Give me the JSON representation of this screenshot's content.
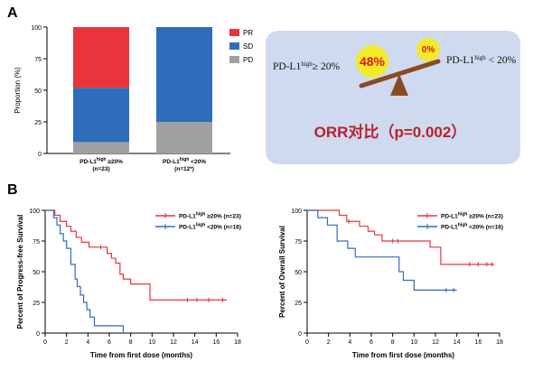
{
  "panel_labels": {
    "a": "A",
    "b": "B"
  },
  "balance": {
    "left_label": "PD-L1",
    "left_sup": "high",
    "left_tail": "≥ 20%",
    "right_label": "PD-L1",
    "right_sup": "high",
    "right_tail": "< 20%",
    "left_value": "48%",
    "right_value": "0%",
    "title": "ORR对比（p=0.002）",
    "colors": {
      "panel": "#cfdaf0",
      "badge": "#f2ea2a",
      "badge_text": "#e3171d",
      "beam": "#8a4a22",
      "title": "#b8212a"
    }
  },
  "chart_data": [
    {
      "type": "bar",
      "stacked": true,
      "ylabel": "Proportion (%)",
      "ylim": [
        0,
        100
      ],
      "yticks": [
        "0",
        "25",
        "50",
        "75",
        "100"
      ],
      "categories": [
        {
          "label": "PD-L1",
          "sup": "high",
          "tail": " ≥20%",
          "n": "(n=23)"
        },
        {
          "label": "PD-L1",
          "sup": "high",
          "tail": " <20%",
          "n": "(n=12*)"
        }
      ],
      "series": [
        {
          "name": "PD",
          "color": "#a0a0a0",
          "values": [
            9,
            25
          ]
        },
        {
          "name": "SD",
          "color": "#2f6dbb",
          "values": [
            43,
            75
          ]
        },
        {
          "name": "PR",
          "color": "#e8343a",
          "values": [
            48,
            0
          ]
        }
      ],
      "legend": [
        "PR",
        "SD",
        "PD"
      ],
      "legend_position": "top-right"
    },
    {
      "type": "line",
      "step": true,
      "ylabel": "Percent of Progress-free Survival",
      "xlabel": "Time from first dose (months)",
      "xlim": [
        0,
        18
      ],
      "ylim": [
        0,
        100
      ],
      "xticks": [
        "0",
        "2",
        "4",
        "6",
        "8",
        "10",
        "12",
        "14",
        "16",
        "18"
      ],
      "yticks": [
        "0",
        "25",
        "50",
        "75",
        "100"
      ],
      "series": [
        {
          "name": "PD-L1",
          "sup": "high",
          "tail": "≥20% (n=23)",
          "color": "#e8343a",
          "x": [
            0,
            0.9,
            1.4,
            2.0,
            2.4,
            2.9,
            3.4,
            4.1,
            4.6,
            5.2,
            5.8,
            6.2,
            6.6,
            7.0,
            7.3,
            8.0,
            9.8,
            17.0
          ],
          "y": [
            100,
            96,
            91,
            87,
            83,
            78,
            74,
            70,
            70,
            70,
            65,
            61,
            57,
            48,
            44,
            40,
            27,
            27
          ],
          "censors": [
            [
              5.2,
              70
            ],
            [
              13.3,
              27
            ],
            [
              14.2,
              27
            ],
            [
              15.3,
              27
            ],
            [
              16.6,
              27
            ]
          ]
        },
        {
          "name": "PD-L1",
          "sup": "high",
          "tail": "<20% (n=16)",
          "color": "#2f6dbb",
          "x": [
            0,
            0.8,
            1.1,
            1.4,
            1.7,
            2.0,
            2.4,
            2.8,
            3.0,
            3.3,
            3.6,
            3.9,
            4.2,
            4.6,
            7.3
          ],
          "y": [
            100,
            94,
            88,
            81,
            75,
            69,
            56,
            44,
            38,
            31,
            25,
            19,
            13,
            6,
            0
          ],
          "censors": []
        }
      ],
      "legend_position": "top-right"
    },
    {
      "type": "line",
      "step": true,
      "ylabel": "Percent of Overall Survival",
      "xlabel": "Time from first dose (months)",
      "xlim": [
        0,
        18
      ],
      "ylim": [
        0,
        100
      ],
      "xticks": [
        "0",
        "2",
        "4",
        "6",
        "8",
        "10",
        "12",
        "14",
        "16",
        "18"
      ],
      "yticks": [
        "0",
        "25",
        "50",
        "75",
        "100"
      ],
      "series": [
        {
          "name": "PD-L1",
          "sup": "high",
          "tail": "≥20% (n=23)",
          "color": "#e8343a",
          "x": [
            0,
            3.0,
            3.7,
            4.9,
            5.7,
            6.3,
            7.0,
            8.9,
            11.5,
            12.5,
            17.5
          ],
          "y": [
            100,
            96,
            91,
            87,
            83,
            80,
            75,
            75,
            70,
            56,
            56
          ],
          "censors": [
            [
              3.9,
              91
            ],
            [
              8.0,
              75
            ],
            [
              8.5,
              75
            ],
            [
              15.2,
              56
            ],
            [
              16.0,
              56
            ],
            [
              16.8,
              56
            ],
            [
              17.3,
              56
            ]
          ]
        },
        {
          "name": "PD-L1",
          "sup": "high",
          "tail": "<20% (n=16)",
          "color": "#2f6dbb",
          "x": [
            0,
            1.0,
            1.9,
            2.8,
            3.8,
            4.5,
            8.6,
            9.0,
            10.0,
            14.0
          ],
          "y": [
            100,
            94,
            88,
            75,
            69,
            62,
            50,
            43,
            35,
            35
          ],
          "censors": [
            [
              13.0,
              35
            ],
            [
              13.7,
              35
            ]
          ]
        }
      ],
      "legend_position": "top-right"
    }
  ]
}
